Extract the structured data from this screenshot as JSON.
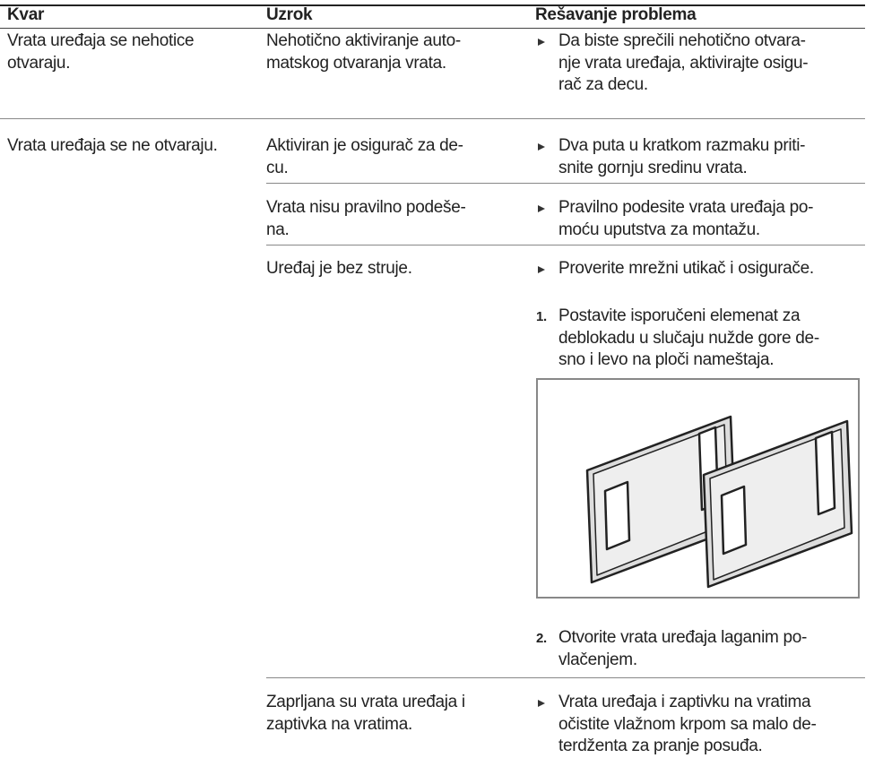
{
  "table": {
    "header": [
      "Kvar",
      "Uzrok",
      "Rešavanje problema"
    ],
    "rows": [
      {
        "fault": [
          "Vrata uređaja se nehotice",
          "otvaraju."
        ],
        "causes": [
          {
            "cause": [
              "Nehotično aktiviranje auto-",
              "matskog otvaranja vrata."
            ],
            "steps": [
              {
                "text": [
                  "Da biste sprečili nehotično otvara-",
                  "nje vrata uređaja, aktivirajte osigu-",
                  "rač za decu."
                ]
              }
            ]
          }
        ]
      },
      {
        "fault": [
          "Vrata uređaja se ne otvaraju."
        ],
        "causes": [
          {
            "cause": [
              "Aktiviran je osigurač za de-",
              "cu."
            ],
            "steps": [
              {
                "text": [
                  "Dva puta u kratkom razmaku priti-",
                  "snite gornju sredinu vrata."
                ]
              }
            ]
          },
          {
            "cause": [
              "Vrata nisu pravilno podeše-",
              "na."
            ],
            "steps": [
              {
                "text": [
                  "Pravilno podesite vrata uređaja po-",
                  "moću uputstva za montažu."
                ]
              }
            ]
          },
          {
            "cause": [
              "Uređaj je bez struje."
            ],
            "steps": [
              {
                "text": [
                  "Proverite mrežni utikač i osigurače."
                ]
              },
              {
                "number": "1.",
                "text": [
                  "Postavite isporučeni elemenat za",
                  "deblokadu u slučaju nužde gore de-",
                  "sno i levo na ploči nameštaja."
                ]
              },
              {
                "number": "2.",
                "text": [
                  "Otvorite vrata uređaja laganim po-",
                  "vlačenjem."
                ]
              }
            ]
          },
          {
            "cause": [
              "Zaprljana su vrata uređaja i",
              "zaptivka na vratima."
            ],
            "steps": [
              {
                "text": [
                  "Vrata uređaja i zaptivku na vratima",
                  "očistite vlažnom krpom sa malo de-",
                  "terdženta za pranje posuđa."
                ]
              }
            ]
          }
        ]
      }
    ]
  }
}
